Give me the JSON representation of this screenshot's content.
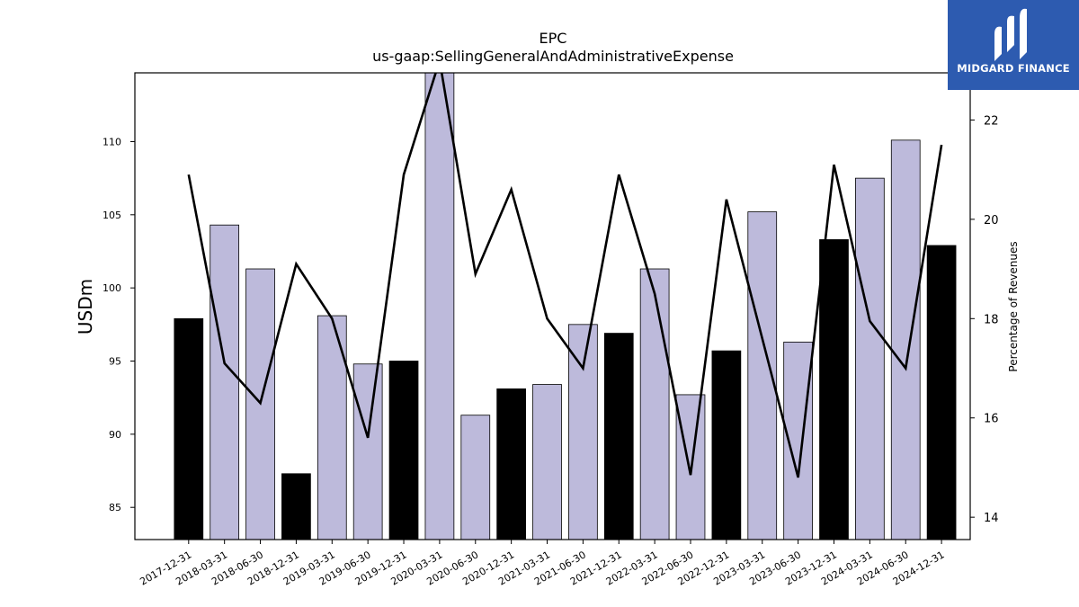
{
  "chart_data": {
    "type": "bar",
    "title": "EPC",
    "subtitle": "us-gaap:SellingGeneralAndAdministrativeExpense",
    "ylabel": "USDm",
    "y2label": "Percentage of Revenues",
    "ylim": [
      82.8,
      114.7
    ],
    "y2lim": [
      13.55,
      22.95
    ],
    "yticks": [
      85,
      90,
      95,
      100,
      105,
      110
    ],
    "y2ticks": [
      14,
      16,
      18,
      20,
      22
    ],
    "categories": [
      "2017-12-31",
      "2018-03-31",
      "2018-06-30",
      "2018-12-31",
      "2019-03-31",
      "2019-06-30",
      "2019-12-31",
      "2020-03-31",
      "2020-06-30",
      "2020-12-31",
      "2021-03-31",
      "2021-06-30",
      "2021-12-31",
      "2022-03-31",
      "2022-06-30",
      "2022-12-31",
      "2023-03-31",
      "2023-06-30",
      "2023-12-31",
      "2024-03-31",
      "2024-06-30",
      "2024-12-31"
    ],
    "bar_fills": [
      "#000000",
      "#bdbadb",
      "#bdbadb",
      "#000000",
      "#bdbadb",
      "#bdbadb",
      "#000000",
      "#bdbadb",
      "#bdbadb",
      "#000000",
      "#bdbadb",
      "#bdbadb",
      "#000000",
      "#bdbadb",
      "#bdbadb",
      "#000000",
      "#bdbadb",
      "#bdbadb",
      "#000000",
      "#bdbadb",
      "#bdbadb",
      "#000000"
    ],
    "series": [
      {
        "type": "bar",
        "axis": "left",
        "values": [
          97.9,
          104.3,
          101.3,
          87.3,
          98.1,
          94.8,
          95.0,
          114.7,
          91.3,
          93.1,
          93.4,
          97.5,
          96.9,
          101.3,
          92.7,
          95.7,
          105.2,
          96.3,
          103.3,
          107.5,
          110.1,
          102.9
        ]
      },
      {
        "type": "line",
        "axis": "right",
        "color": "#000000",
        "values": [
          20.9,
          17.1,
          16.3,
          19.1,
          18.0,
          15.6,
          20.9,
          23.2,
          18.9,
          20.6,
          18.0,
          17.0,
          20.9,
          18.5,
          14.85,
          20.4,
          17.6,
          14.8,
          21.1,
          17.95,
          17.0,
          21.5
        ]
      }
    ],
    "grid": false,
    "legend": "none"
  },
  "logo": {
    "text": "MIDGARD FINANCE",
    "color": "#2d5bb0"
  }
}
